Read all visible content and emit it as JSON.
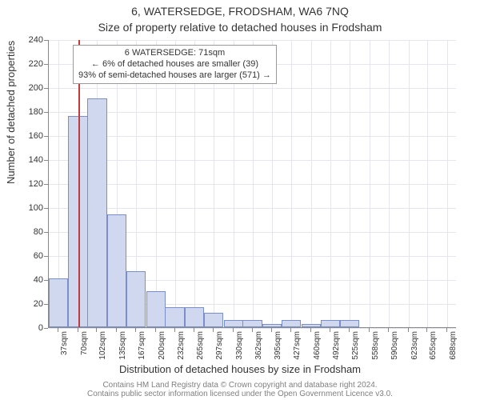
{
  "title_main": "6, WATERSEDGE, FRODSHAM, WA6 7NQ",
  "title_sub": "Size of property relative to detached houses in Frodsham",
  "ylabel": "Number of detached properties",
  "xlabel": "Distribution of detached houses by size in Frodsham",
  "attribution_line1": "Contains HM Land Registry data © Crown copyright and database right 2024.",
  "attribution_line2": "Contains public sector information licensed under the Open Government Licence v3.0.",
  "callout": {
    "line1": "6 WATERSEDGE: 71sqm",
    "line2": "← 6% of detached houses are smaller (39)",
    "line3": "93% of semi-detached houses are larger (571) →"
  },
  "chart": {
    "type": "histogram",
    "background_color": "#ffffff",
    "grid_color": "#e5e5ef",
    "axis_color": "#888888",
    "bar_fill": "#cfd8ee",
    "bar_border": "#7a8fc9",
    "marker_color": "#c23a3a",
    "marker_x_value": 71,
    "title_fontsize": 14,
    "label_fontsize": 13,
    "tick_fontsize": 11,
    "xtick_fontsize": 10,
    "x_domain_min": 21,
    "x_domain_max": 704,
    "ylim": [
      0,
      240
    ],
    "ytick_step": 20,
    "xticks": [
      "37sqm",
      "70sqm",
      "102sqm",
      "135sqm",
      "167sqm",
      "200sqm",
      "232sqm",
      "265sqm",
      "297sqm",
      "330sqm",
      "362sqm",
      "395sqm",
      "427sqm",
      "460sqm",
      "492sqm",
      "525sqm",
      "558sqm",
      "590sqm",
      "623sqm",
      "655sqm",
      "688sqm"
    ],
    "xtick_values": [
      37,
      70,
      102,
      135,
      167,
      200,
      232,
      265,
      297,
      330,
      362,
      395,
      427,
      460,
      492,
      525,
      558,
      590,
      623,
      655,
      688
    ],
    "bar_centers": [
      37,
      70,
      102,
      135,
      167,
      200,
      232,
      265,
      297,
      330,
      362,
      395,
      427,
      460,
      492,
      525,
      558,
      590,
      623,
      655,
      688
    ],
    "bar_width_value": 32.5,
    "values": [
      41,
      176,
      191,
      94,
      47,
      30,
      17,
      17,
      12,
      6,
      6,
      3,
      6,
      3,
      6,
      6,
      0,
      0,
      0,
      0,
      0
    ]
  }
}
